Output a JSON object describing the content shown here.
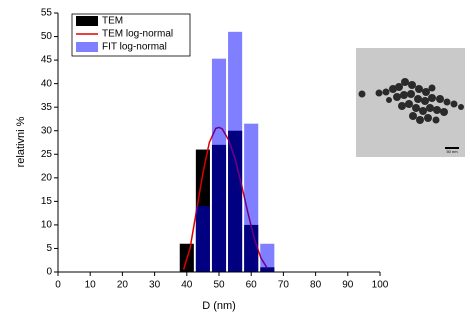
{
  "chart_data": {
    "type": "histogram",
    "xlabel": "D (nm)",
    "ylabel": "relativni %",
    "bins": [
      37.5,
      42.5,
      47.5,
      52.5,
      57.5,
      62.5,
      67.5
    ],
    "series": [
      {
        "name": "TEM",
        "color": "#000000",
        "opacity": 1,
        "values": [
          6,
          26,
          27,
          30,
          10,
          1
        ]
      },
      {
        "name": "TEM log-normal",
        "type": "line",
        "color": "#e00000",
        "x": [
          39,
          41,
          43,
          45,
          47,
          49,
          50,
          51,
          53,
          55,
          57,
          59,
          61,
          63,
          65
        ],
        "values": [
          0.5,
          5,
          13,
          21,
          27.5,
          30.5,
          30.7,
          30.4,
          28,
          24,
          18.5,
          12.5,
          7,
          3,
          0.8
        ]
      },
      {
        "name": "FIT log-normal",
        "color": "#0000ff",
        "opacity": 0.5,
        "values": [
          0,
          14,
          45.3,
          51,
          31.5,
          6
        ]
      }
    ],
    "xlim": [
      0,
      100
    ],
    "xticks": [
      0,
      10,
      20,
      30,
      40,
      50,
      60,
      70,
      80,
      90,
      100
    ],
    "ylim": [
      0,
      55
    ],
    "yticks": [
      0,
      5,
      10,
      15,
      20,
      25,
      30,
      35,
      40,
      45,
      50,
      55
    ],
    "legend": "upper left",
    "annotations": [
      "50 nm"
    ]
  }
}
